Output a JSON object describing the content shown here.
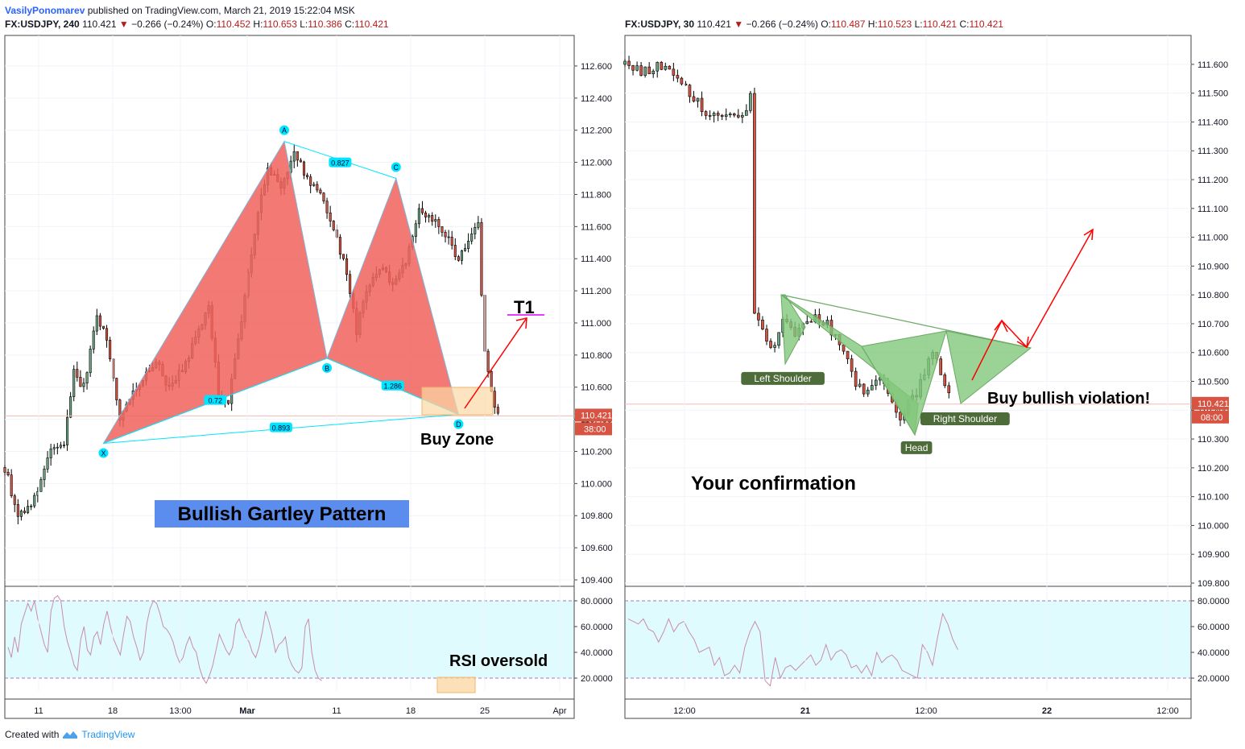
{
  "header": {
    "author": "VasilyPonomarev",
    "published": "published on TradingView.com, March 21, 2019 15:22:04 MSK",
    "left": {
      "symbol": "FX:USDJPY, 240",
      "price": "110.421",
      "change": "−0.266 (−0.24%)",
      "o_label": "O:",
      "o": "110.452",
      "h_label": "H:",
      "h": "110.653",
      "l_label": "L:",
      "l": "110.386",
      "c_label": "C:",
      "c": "110.421"
    },
    "right": {
      "symbol": "FX:USDJPY, 30",
      "price": "110.421",
      "change": "−0.266 (−0.24%)",
      "o_label": "O:",
      "o": "110.487",
      "h_label": "H:",
      "h": "110.523",
      "l_label": "L:",
      "l": "110.421",
      "c_label": "C:",
      "c": "110.421"
    }
  },
  "footer": {
    "created": "Created with",
    "brand": "TradingView"
  },
  "colors": {
    "up": "#6ba583",
    "down": "#d75442",
    "wick": "#000000",
    "pattern_fill": "#f0625c",
    "hs_fill": "#82c77a",
    "rsi_band": "#e0fbfd",
    "rsi_line": "#c98bb0",
    "price_tag": "#d75442",
    "arrow": "#ff0000",
    "label_blue": "#5b8def",
    "label_green": "#4e6b3a",
    "zone": "#fbd9a6",
    "cyan": "#00e5ff"
  },
  "chart_data": [
    {
      "type": "candlestick",
      "name": "left",
      "interval": "240",
      "ylim": [
        109.4,
        112.7
      ],
      "yticks": [
        "112.600",
        "112.400",
        "112.200",
        "112.000",
        "111.800",
        "111.600",
        "111.400",
        "111.200",
        "111.000",
        "110.800",
        "110.600",
        "110.400",
        "110.200",
        "110.000",
        "109.800",
        "109.600",
        "109.400"
      ],
      "xticks": [
        "11",
        "18",
        "13:00",
        "Mar",
        "11",
        "18",
        "25",
        "Apr"
      ],
      "xticks_bold": [
        "Mar"
      ],
      "price_tag": "110.421",
      "countdown": "38:00",
      "anchors": [
        [
          0,
          110.1
        ],
        [
          4,
          109.8
        ],
        [
          9,
          109.9
        ],
        [
          14,
          110.2
        ],
        [
          18,
          110.25
        ],
        [
          21,
          110.7
        ],
        [
          24,
          110.6
        ],
        [
          28,
          111.05
        ],
        [
          31,
          110.9
        ],
        [
          35,
          110.4
        ],
        [
          38,
          110.55
        ],
        [
          42,
          110.65
        ],
        [
          46,
          110.75
        ],
        [
          50,
          110.6
        ],
        [
          54,
          110.7
        ],
        [
          58,
          110.9
        ],
        [
          62,
          111.1
        ],
        [
          65,
          110.55
        ],
        [
          68,
          110.5
        ],
        [
          71,
          110.9
        ],
        [
          74,
          111.3
        ],
        [
          77,
          111.7
        ],
        [
          80,
          111.95
        ],
        [
          84,
          111.85
        ],
        [
          88,
          112.05
        ],
        [
          92,
          111.9
        ],
        [
          96,
          111.8
        ],
        [
          100,
          111.6
        ],
        [
          104,
          111.3
        ],
        [
          107,
          110.95
        ],
        [
          110,
          111.2
        ],
        [
          114,
          111.35
        ],
        [
          118,
          111.25
        ],
        [
          122,
          111.4
        ],
        [
          126,
          111.7
        ],
        [
          130,
          111.65
        ],
        [
          134,
          111.55
        ],
        [
          138,
          111.4
        ],
        [
          141,
          111.5
        ],
        [
          144,
          111.6
        ],
        [
          146,
          110.8
        ],
        [
          148,
          110.55
        ],
        [
          150,
          110.42
        ]
      ],
      "candle_count": 151,
      "x_range": [
        0,
        170
      ],
      "points": [
        {
          "label": "X",
          "x": 30,
          "y": 110.25
        },
        {
          "label": "A",
          "x": 85,
          "y": 112.13
        },
        {
          "label": "B",
          "x": 98,
          "y": 110.78
        },
        {
          "label": "C",
          "x": 119,
          "y": 111.9
        },
        {
          "label": "D",
          "x": 138,
          "y": 110.43
        }
      ],
      "ratios": [
        {
          "value": "0.827",
          "x": 102,
          "y": 112.0
        },
        {
          "value": "0.72",
          "x": 64,
          "y": 110.52
        },
        {
          "value": "1.286",
          "x": 118,
          "y": 110.61
        },
        {
          "value": "0.893",
          "x": 84,
          "y": 110.35
        }
      ],
      "annotations": {
        "buy_zone": "Buy Zone",
        "target": "T1",
        "pattern": "Bullish Gartley Pattern",
        "rsi": "RSI oversold"
      },
      "rsi": {
        "ylim": [
          10,
          90
        ],
        "band": [
          20,
          80
        ],
        "yticks": [
          "80.0000",
          "60.0000",
          "40.0000",
          "20.0000"
        ],
        "values": [
          44,
          36,
          52,
          40,
          62,
          70,
          78,
          72,
          80,
          66,
          56,
          46,
          40,
          72,
          82,
          84,
          80,
          60,
          48,
          40,
          30,
          26,
          50,
          60,
          42,
          38,
          52,
          56,
          46,
          62,
          72,
          60,
          50,
          44,
          38,
          54,
          68,
          64,
          52,
          44,
          34,
          40,
          62,
          74,
          80,
          78,
          70,
          60,
          58,
          54,
          48,
          38,
          32,
          36,
          46,
          52,
          44,
          40,
          28,
          20,
          16,
          22,
          30,
          42,
          54,
          48,
          42,
          38,
          44,
          62,
          66,
          58,
          52,
          48,
          40,
          36,
          44,
          56,
          72,
          64,
          54,
          40,
          46,
          48,
          52,
          36,
          30,
          26,
          24,
          28,
          60,
          66,
          40,
          26,
          20,
          18
        ]
      }
    },
    {
      "type": "candlestick",
      "name": "right",
      "interval": "30",
      "ylim": [
        109.8,
        111.65
      ],
      "yticks": [
        "111.600",
        "111.500",
        "111.400",
        "111.300",
        "111.200",
        "111.100",
        "111.000",
        "110.900",
        "110.800",
        "110.700",
        "110.600",
        "110.500",
        "110.400",
        "110.300",
        "110.200",
        "110.100",
        "110.000",
        "109.900",
        "109.800"
      ],
      "xticks": [
        "12:00",
        "21",
        "12:00",
        "22",
        "12:00"
      ],
      "xticks_bold": [
        "21",
        "22"
      ],
      "price_tag": "110.421",
      "countdown": "08:00",
      "anchors": [
        [
          0,
          111.6
        ],
        [
          4,
          111.57
        ],
        [
          8,
          111.6
        ],
        [
          12,
          111.56
        ],
        [
          16,
          111.5
        ],
        [
          20,
          111.44
        ],
        [
          24,
          111.4
        ],
        [
          28,
          111.42
        ],
        [
          30,
          111.44
        ],
        [
          31,
          111.5
        ],
        [
          32,
          110.75
        ],
        [
          34,
          110.68
        ],
        [
          36,
          110.6
        ],
        [
          39,
          110.72
        ],
        [
          42,
          110.66
        ],
        [
          45,
          110.7
        ],
        [
          48,
          110.72
        ],
        [
          51,
          110.68
        ],
        [
          54,
          110.6
        ],
        [
          57,
          110.5
        ],
        [
          60,
          110.46
        ],
        [
          63,
          110.5
        ],
        [
          66,
          110.43
        ],
        [
          68,
          110.36
        ],
        [
          70,
          110.44
        ],
        [
          72,
          110.46
        ],
        [
          74,
          110.54
        ],
        [
          76,
          110.62
        ],
        [
          78,
          110.52
        ],
        [
          80,
          110.45
        ]
      ],
      "candle_count": 81,
      "x_range": [
        0,
        140
      ],
      "labels": [
        {
          "text": "Left Shoulder",
          "x": 39,
          "y": 110.51
        },
        {
          "text": "Head",
          "x": 72,
          "y": 110.27
        },
        {
          "text": "Right Shoulder",
          "x": 84,
          "y": 110.37
        }
      ],
      "annotations": {
        "confirm": "Your confirmation",
        "violation": "Buy bullish violation!"
      },
      "rsi": {
        "ylim": [
          10,
          90
        ],
        "band": [
          20,
          80
        ],
        "yticks": [
          "80.0000",
          "60.0000",
          "40.0000",
          "20.0000"
        ],
        "values": [
          66,
          64,
          62,
          66,
          58,
          56,
          48,
          56,
          66,
          56,
          62,
          64,
          56,
          50,
          40,
          42,
          44,
          30,
          36,
          22,
          24,
          30,
          24,
          44,
          56,
          64,
          56,
          18,
          14,
          36,
          20,
          28,
          30,
          26,
          30,
          34,
          38,
          30,
          34,
          46,
          34,
          40,
          42,
          38,
          28,
          30,
          24,
          30,
          22,
          40,
          32,
          36,
          38,
          34,
          26,
          24,
          22,
          20,
          46,
          40,
          30,
          52,
          70,
          62,
          50,
          42
        ]
      }
    }
  ]
}
